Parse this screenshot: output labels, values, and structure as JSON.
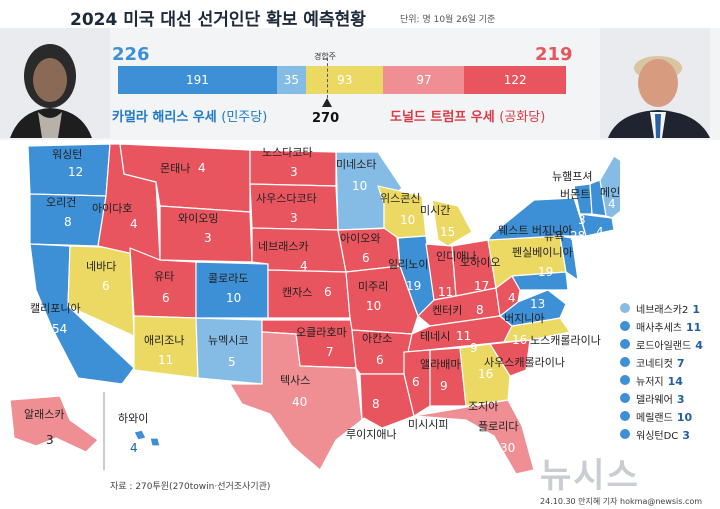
{
  "header": {
    "title": "2024 미국 대선 선거인단 확보 예측현황",
    "subtitle": "단위: 명 10월 26일 기준"
  },
  "tally": {
    "dem_total": "226",
    "rep_total": "219",
    "tossup_label": "경합주",
    "threshold": "270",
    "segments": {
      "dem_solid": "191",
      "dem_lean": "35",
      "tossup": "93",
      "rep_lean": "97",
      "rep_solid": "122"
    },
    "dem_caption": "카멀라 해리스 우세",
    "dem_party": "(민주당)",
    "rep_caption": "도널드 트럼프 우세",
    "rep_party": "(공화당)"
  },
  "colors": {
    "dem_solid": "#3d8fd6",
    "dem_lean": "#85bce6",
    "tossup": "#ecd963",
    "rep_lean": "#ef8f94",
    "rep_solid": "#e8555f"
  },
  "states": {
    "wa": {
      "name": "워싱턴",
      "votes": "12"
    },
    "or": {
      "name": "오리건",
      "votes": "8"
    },
    "ca": {
      "name": "캘리포니아",
      "votes": "54"
    },
    "nv": {
      "name": "네바다",
      "votes": "6"
    },
    "id": {
      "name": "아이다호",
      "votes": "4"
    },
    "mt": {
      "name": "몬태나",
      "votes": "4"
    },
    "wy": {
      "name": "와이오밍",
      "votes": "3"
    },
    "ut": {
      "name": "유타",
      "votes": "6"
    },
    "az": {
      "name": "애리조나",
      "votes": "11"
    },
    "co": {
      "name": "콜로라도",
      "votes": "10"
    },
    "nm": {
      "name": "뉴멕시코",
      "votes": "5"
    },
    "nd": {
      "name": "노스다코타",
      "votes": "3"
    },
    "sd": {
      "name": "사우스다코타",
      "votes": "3"
    },
    "ne": {
      "name": "네브래스카",
      "votes": "4"
    },
    "ks": {
      "name": "캔자스",
      "votes": "6"
    },
    "ok": {
      "name": "오클라호마",
      "votes": "7"
    },
    "tx": {
      "name": "텍사스",
      "votes": "40"
    },
    "mn": {
      "name": "미네소타",
      "votes": "10"
    },
    "ia": {
      "name": "아이오와",
      "votes": "6"
    },
    "mo": {
      "name": "미주리",
      "votes": "10"
    },
    "ar": {
      "name": "아칸소",
      "votes": "6"
    },
    "la": {
      "name": "루이지애나",
      "votes": "8"
    },
    "wi": {
      "name": "위스콘신",
      "votes": "10"
    },
    "il": {
      "name": "일리노이",
      "votes": "19"
    },
    "mi": {
      "name": "미시간",
      "votes": "15"
    },
    "in": {
      "name": "인디애나",
      "votes": "11"
    },
    "oh": {
      "name": "오하이오",
      "votes": "17"
    },
    "ky": {
      "name": "켄터키",
      "votes": "8"
    },
    "tn": {
      "name": "테네시",
      "votes": "11"
    },
    "ms": {
      "name": "미시시피",
      "votes": "6"
    },
    "al": {
      "name": "앨라배마",
      "votes": "9"
    },
    "ga": {
      "name": "조지아",
      "votes": "16"
    },
    "fl": {
      "name": "플로리다",
      "votes": "30"
    },
    "sc": {
      "name": "사우스캐롤라이나",
      "votes": "9"
    },
    "nc": {
      "name": "노스캐롤라이나",
      "votes": "16"
    },
    "va": {
      "name": "버지니아",
      "votes": "13"
    },
    "wv": {
      "name": "웨스트 버지니아",
      "votes": "4"
    },
    "pa": {
      "name": "펜실베이니아",
      "votes": "19"
    },
    "ny": {
      "name": "뉴욕",
      "votes": "28"
    },
    "vt": {
      "name": "버몬트",
      "votes": "3"
    },
    "nh": {
      "name": "뉴햄프셔",
      "votes": "4"
    },
    "me": {
      "name": "메인",
      "votes": "4"
    },
    "ak": {
      "name": "알래스카",
      "votes": "3"
    },
    "hi": {
      "name": "하와이",
      "votes": "4"
    }
  },
  "legend": [
    {
      "name": "네브래스카2",
      "votes": "1"
    },
    {
      "name": "매사추세츠",
      "votes": "11"
    },
    {
      "name": "로드아일랜드",
      "votes": "4"
    },
    {
      "name": "코네티컷",
      "votes": "7"
    },
    {
      "name": "뉴저지",
      "votes": "14"
    },
    {
      "name": "델라웨어",
      "votes": "3"
    },
    {
      "name": "메릴랜드",
      "votes": "10"
    },
    {
      "name": "워싱턴DC",
      "votes": "3"
    }
  ],
  "footer": {
    "source": "자료 : 270투윈(270towin·선거조사기관)",
    "credit": "24.10.30 안지혜 기자 hokma@newsis.com",
    "watermark": "뉴시스"
  }
}
